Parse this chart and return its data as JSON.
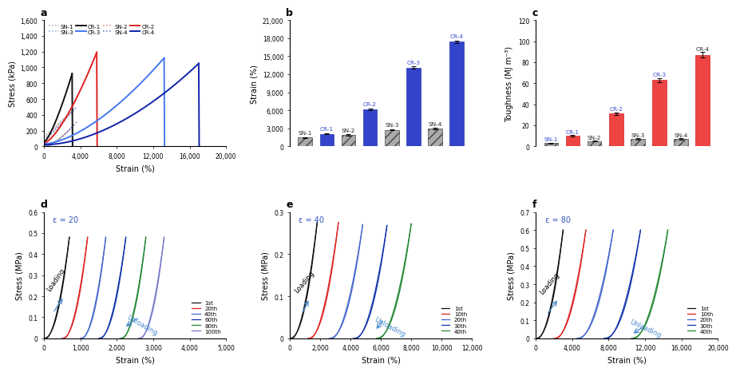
{
  "panel_a": {
    "xlabel": "Strain (%)",
    "ylabel": "Stress (kPa)",
    "xlim": [
      0,
      20000
    ],
    "ylim": [
      0,
      1600
    ],
    "yticks": [
      0,
      200,
      400,
      600,
      800,
      1000,
      1200,
      1400,
      1600
    ],
    "xticks": [
      0,
      4000,
      8000,
      12000,
      16000,
      20000
    ],
    "SN_colors": {
      "SN-1": "#aaaaaa",
      "SN-2": "#dd8888",
      "SN-3": "#88aadd",
      "SN-4": "#6677bb"
    },
    "CR_colors": {
      "CR-1": "#111111",
      "CR-2": "#dd2222",
      "CR-3": "#4477ee",
      "CR-4": "#1122aa"
    }
  },
  "panel_b": {
    "ylabel": "Strain (%)",
    "ylim": [
      0,
      21000
    ],
    "yticks": [
      0,
      3000,
      6000,
      9000,
      12000,
      15000,
      18000,
      21000
    ],
    "groups": [
      "SN-1",
      "CR-1",
      "SN-2",
      "CR-2",
      "SN-3",
      "CR-3",
      "SN-4",
      "CR-4"
    ],
    "values": [
      1450,
      2100,
      1900,
      6200,
      2750,
      13100,
      2950,
      17400
    ],
    "errors": [
      70,
      90,
      85,
      140,
      110,
      190,
      120,
      190
    ],
    "cr_color": "#3344cc",
    "sn_hatch": "///",
    "label_colors": {
      "SN-1": "#222222",
      "CR-1": "#3344cc",
      "SN-2": "#222222",
      "CR-2": "#3344cc",
      "SN-3": "#222222",
      "CR-3": "#3344cc",
      "SN-4": "#222222",
      "CR-4": "#3344cc"
    }
  },
  "panel_c": {
    "ylabel": "Toughness (MJ m⁻³)",
    "ylim": [
      0,
      120
    ],
    "yticks": [
      0,
      20,
      40,
      60,
      80,
      100,
      120
    ],
    "groups": [
      "SN-1",
      "CR-1",
      "SN-2",
      "CR-2",
      "SN-3",
      "CR-3",
      "SN-4",
      "CR-4"
    ],
    "values": [
      3.0,
      10.0,
      5.0,
      31.0,
      7.0,
      63.0,
      7.0,
      87.0
    ],
    "errors": [
      0.3,
      0.8,
      0.4,
      1.5,
      0.5,
      2.0,
      0.5,
      2.5
    ],
    "cr_color": "#ee4444",
    "sn_hatch": "///",
    "label_colors": {
      "SN-1": "#3344cc",
      "CR-1": "#3344cc",
      "SN-2": "#222222",
      "CR-2": "#3344cc",
      "SN-3": "#222222",
      "CR-3": "#3344cc",
      "SN-4": "#222222",
      "CR-4": "#222222"
    }
  },
  "panel_d": {
    "epsilon": "ε = 20",
    "xlabel": "Strain (%)",
    "ylabel": "Stress (MPa)",
    "xlim": [
      0,
      5000
    ],
    "ylim": [
      0,
      0.6
    ],
    "xticks": [
      0,
      1000,
      2000,
      3000,
      4000,
      5000
    ],
    "yticks": [
      0.0,
      0.1,
      0.2,
      0.3,
      0.4,
      0.5,
      0.6
    ],
    "x_starts": [
      0,
      500,
      1000,
      1500,
      2100,
      2600
    ],
    "x_ends": [
      700,
      1200,
      1700,
      2250,
      2800,
      3300
    ],
    "y_maxes": [
      0.48,
      0.48,
      0.48,
      0.48,
      0.48,
      0.48
    ],
    "cycles": [
      "1st",
      "20th",
      "40th",
      "60th",
      "80th",
      "100th"
    ],
    "colors": [
      "#111111",
      "#dd2222",
      "#4466cc",
      "#1133aa",
      "#228833",
      "#7777cc"
    ]
  },
  "panel_e": {
    "epsilon": "ε = 40",
    "xlabel": "Strain (%)",
    "ylabel": "Stress (MPa)",
    "xlim": [
      0,
      12000
    ],
    "ylim": [
      0,
      0.3
    ],
    "xticks": [
      0,
      2000,
      4000,
      6000,
      8000,
      10000,
      12000
    ],
    "yticks": [
      0.0,
      0.1,
      0.2,
      0.3
    ],
    "x_starts": [
      0,
      1200,
      2600,
      4200,
      5700
    ],
    "x_ends": [
      1800,
      3200,
      4800,
      6400,
      8000
    ],
    "y_maxes": [
      0.275,
      0.275,
      0.27,
      0.268,
      0.272
    ],
    "cycles": [
      "1st",
      "10th",
      "20th",
      "30th",
      "40th"
    ],
    "colors": [
      "#111111",
      "#dd2222",
      "#4466cc",
      "#1133aa",
      "#228833"
    ]
  },
  "panel_f": {
    "epsilon": "ε = 80",
    "xlabel": "Strain (%)",
    "ylabel": "Stress (MPa)",
    "xlim": [
      0,
      20000
    ],
    "ylim": [
      0,
      0.7
    ],
    "xticks": [
      0,
      4000,
      8000,
      12000,
      16000,
      20000
    ],
    "yticks": [
      0.0,
      0.1,
      0.2,
      0.3,
      0.4,
      0.5,
      0.6,
      0.7
    ],
    "x_starts": [
      0,
      2000,
      4500,
      7500,
      10500
    ],
    "x_ends": [
      3000,
      5500,
      8500,
      11500,
      14500
    ],
    "y_maxes": [
      0.6,
      0.6,
      0.6,
      0.6,
      0.6
    ],
    "cycles": [
      "1st",
      "10th",
      "20th",
      "30th",
      "40th"
    ],
    "colors": [
      "#111111",
      "#dd2222",
      "#4466cc",
      "#1133aa",
      "#228833"
    ]
  }
}
